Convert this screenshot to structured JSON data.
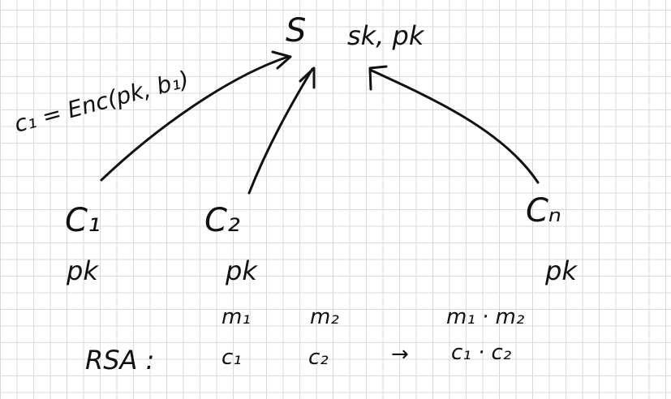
{
  "server": {
    "label": "S",
    "keys": "sk, pk"
  },
  "encryption_label": "c₁ = Enc(pk, b₁)",
  "clients": [
    {
      "name": "C₁",
      "key": "pk"
    },
    {
      "name": "C₂",
      "key": "pk"
    },
    {
      "name": "Cₙ",
      "key": "pk"
    }
  ],
  "messages": {
    "m1": "m₁",
    "m2": "m₂",
    "product": "m₁ · m₂"
  },
  "rsa": {
    "label": "RSA :",
    "c1": "c₁",
    "c2": "c₂",
    "arrow": "→",
    "product": "c₁ · c₂"
  }
}
